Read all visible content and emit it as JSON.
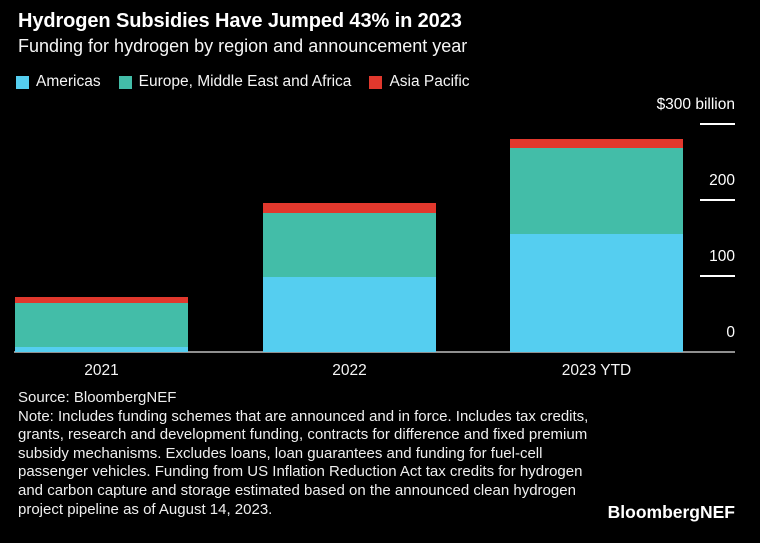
{
  "header": {
    "title": "Hydrogen Subsidies Have Jumped 43% in 2023",
    "subtitle": "Funding for hydrogen by region and announcement year"
  },
  "legend": [
    {
      "label": "Americas",
      "color": "#55CEF0"
    },
    {
      "label": "Europe, Middle East and Africa",
      "color": "#43BDA8"
    },
    {
      "label": "Asia Pacific",
      "color": "#E1382D"
    }
  ],
  "chart_data": {
    "type": "bar",
    "stacked": true,
    "title": "Hydrogen Subsidies Have Jumped 43% in 2023",
    "subtitle": "Funding for hydrogen by region and announcement year",
    "unit": "$ billion",
    "categories": [
      "2021",
      "2022",
      "2023 YTD"
    ],
    "series": [
      {
        "name": "Americas",
        "color": "#55CEF0",
        "values": [
          7,
          99,
          155
        ]
      },
      {
        "name": "Europe, Middle East and Africa",
        "color": "#43BDA8",
        "values": [
          58,
          84,
          113
        ]
      },
      {
        "name": "Asia Pacific",
        "color": "#E1382D",
        "values": [
          8,
          13,
          12
        ]
      }
    ],
    "totals": [
      73,
      196,
      280
    ],
    "ylim": [
      0,
      300
    ],
    "yticks": [
      {
        "value": 0,
        "label": "0"
      },
      {
        "value": 100,
        "label": "100"
      },
      {
        "value": 200,
        "label": "200"
      },
      {
        "value": 300,
        "label": "$300 billion"
      }
    ],
    "grid": false,
    "legend_position": "top",
    "axis_side": "right"
  },
  "footer": {
    "source": "Source: BloombergNEF",
    "note": "Note: Includes funding schemes that are announced and in force. Includes tax credits, grants, research and development funding, contracts for difference and fixed premium subsidy mechanisms. Excludes loans, loan guarantees and funding for fuel-cell passenger vehicles. Funding from US Inflation Reduction Act tax credits for hydrogen and carbon capture and storage estimated based on the announced clean hydrogen project pipeline as of August 14, 2023.",
    "brand": "BloombergNEF"
  },
  "colors": {
    "background": "#000000",
    "text": "#ffffff",
    "axis_line": "#8f8f8f",
    "tick_line": "#ffffff"
  }
}
